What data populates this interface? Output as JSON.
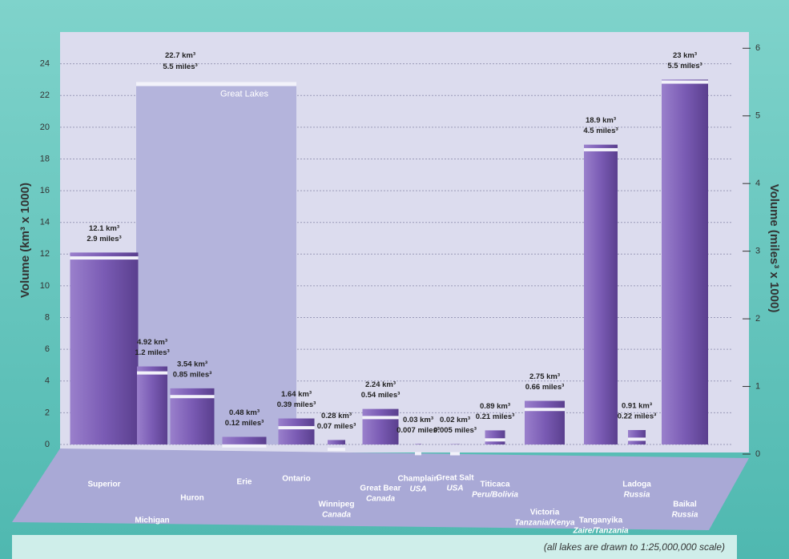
{
  "chart_data": {
    "type": "bar",
    "categories": [
      "Superior",
      "Michigan",
      "Huron",
      "Erie",
      "Ontario",
      "Winnipeg",
      "Great Bear",
      "Champlain",
      "Great Salt",
      "Titicaca",
      "Victoria",
      "Tanganyika",
      "Ladoga",
      "Baikal"
    ],
    "sublabels": [
      null,
      null,
      null,
      null,
      null,
      "Canada",
      "Canada",
      "USA",
      "USA",
      "Peru/Bolivia",
      "Tanzania/Kenya",
      "Zaire/Tanzania",
      "Russia",
      "Russia"
    ],
    "series": [
      {
        "color": "#7a5bb4",
        "values": [
          12.1,
          4.92,
          3.54,
          0.48,
          1.64,
          0.28,
          2.24,
          0.03,
          0.02,
          0.89,
          2.75,
          18.9,
          0.91,
          23
        ],
        "value_labels": [
          "12.1 km³",
          "4.92 km³",
          "3.54 km³",
          "0.48 km³",
          "1.64 km³",
          "0.28 km³",
          "2.24 km³",
          "0.03 km³",
          "0.02 km³",
          "0.89 km³",
          "2.75 km³",
          "18.9 km³",
          "0.91 km³",
          "23 km³"
        ]
      },
      {
        "axis": "y2",
        "color": "#f2f2fa",
        "values": [
          2.9,
          1.2,
          0.85,
          0.12,
          0.39,
          0.07,
          0.54,
          0.007,
          0.005,
          0.21,
          0.66,
          4.5,
          0.22,
          5.5
        ],
        "value_labels": [
          "2.9 miles³",
          "1.2 miles³",
          "0.85 miles³",
          "0.12 miles³",
          "0.39 miles³",
          "0.07 miles³",
          "0.54 miles³",
          "0.007 miles³",
          "0.005 miles³",
          "0.21 miles³",
          "0.66 miles³",
          "4.5 miles³",
          "0.22 miles³",
          "5.5 miles³"
        ]
      }
    ],
    "annotation": {
      "text": "Great Lakes",
      "value": 22.7,
      "value_label": "22.7 km³",
      "value2": 5.5,
      "value2_label": "5.5 miles³"
    },
    "ylabel": "Volume (km³ x 1000)",
    "y2label": "Volume (miles³ x 1000)",
    "ylim": [
      0,
      26
    ],
    "yticks": [
      0,
      2,
      4,
      6,
      8,
      10,
      12,
      14,
      16,
      18,
      20,
      22,
      24
    ],
    "y2lim": [
      0,
      6.24
    ],
    "y2ticks": [
      0,
      1,
      2,
      3,
      4,
      5,
      6
    ],
    "grid": true,
    "footnote": "(all lakes are drawn to 1:25,000,000 scale)"
  }
}
